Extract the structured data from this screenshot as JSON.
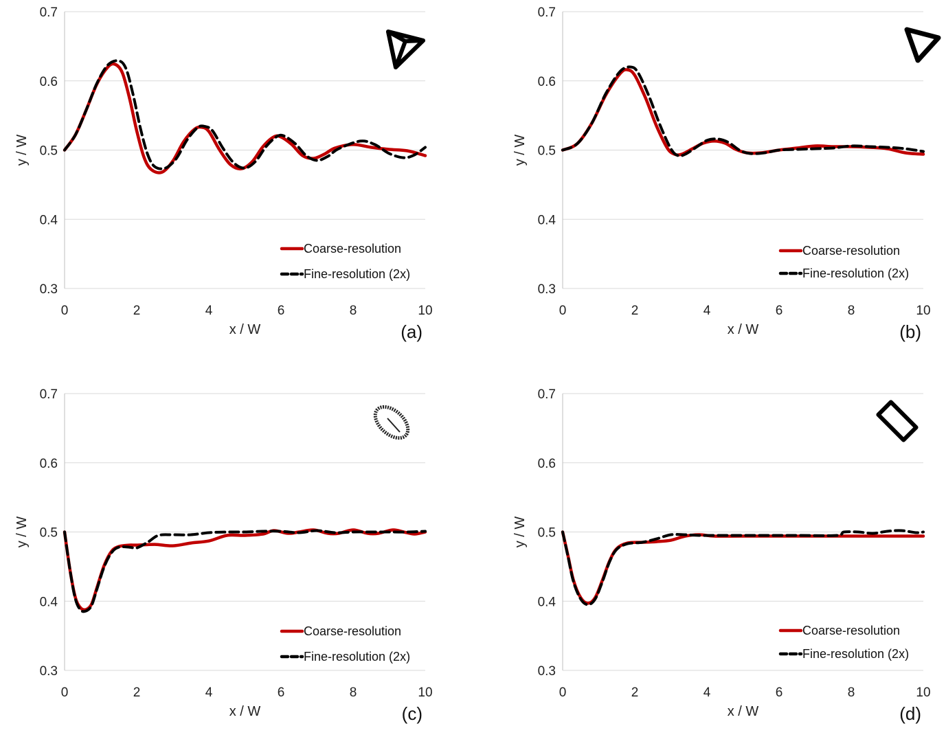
{
  "chart_data": [
    {
      "type": "line",
      "panel_label": "(a)",
      "xlabel": "x / W",
      "ylabel": "y / W",
      "xlim": [
        0,
        10
      ],
      "ylim": [
        0.3,
        0.7
      ],
      "xticks": [
        "0",
        "2",
        "4",
        "6",
        "8",
        "10"
      ],
      "yticks": [
        "0.3",
        "0.4",
        "0.5",
        "0.6",
        "0.7"
      ],
      "shape_icon": "arrowhead-triangle-icon",
      "series": [
        {
          "name": "Coarse-resolution",
          "color": "#c00000",
          "style": "solid",
          "x": [
            0,
            0.3,
            0.6,
            0.9,
            1.2,
            1.4,
            1.6,
            1.8,
            2.0,
            2.2,
            2.4,
            2.7,
            3.0,
            3.3,
            3.6,
            3.8,
            4.0,
            4.3,
            4.6,
            4.9,
            5.2,
            5.5,
            5.8,
            6.0,
            6.3,
            6.6,
            6.9,
            7.2,
            7.5,
            8.0,
            8.5,
            9.0,
            9.5,
            10.0
          ],
          "y": [
            0.5,
            0.522,
            0.558,
            0.596,
            0.62,
            0.624,
            0.612,
            0.575,
            0.528,
            0.49,
            0.472,
            0.468,
            0.484,
            0.512,
            0.53,
            0.533,
            0.527,
            0.5,
            0.479,
            0.473,
            0.483,
            0.505,
            0.519,
            0.519,
            0.508,
            0.492,
            0.488,
            0.494,
            0.503,
            0.508,
            0.504,
            0.501,
            0.499,
            0.492
          ]
        },
        {
          "name": "Fine-resolution (2x)",
          "color": "#000000",
          "style": "dashed",
          "x": [
            0,
            0.3,
            0.6,
            0.9,
            1.2,
            1.5,
            1.7,
            1.9,
            2.1,
            2.3,
            2.5,
            2.8,
            3.1,
            3.4,
            3.7,
            3.9,
            4.1,
            4.4,
            4.7,
            5.0,
            5.3,
            5.6,
            5.9,
            6.1,
            6.4,
            6.7,
            7.0,
            7.3,
            7.6,
            8.2,
            8.6,
            9.0,
            9.4,
            9.7,
            10.0
          ],
          "y": [
            0.5,
            0.522,
            0.558,
            0.597,
            0.623,
            0.629,
            0.618,
            0.58,
            0.532,
            0.494,
            0.476,
            0.474,
            0.488,
            0.515,
            0.533,
            0.534,
            0.528,
            0.502,
            0.481,
            0.474,
            0.484,
            0.506,
            0.52,
            0.52,
            0.509,
            0.492,
            0.485,
            0.491,
            0.502,
            0.513,
            0.508,
            0.495,
            0.489,
            0.493,
            0.504
          ]
        }
      ]
    },
    {
      "type": "line",
      "panel_label": "(b)",
      "xlabel": "x / W",
      "ylabel": "y / W",
      "xlim": [
        0,
        10
      ],
      "ylim": [
        0.3,
        0.7
      ],
      "xticks": [
        "0",
        "2",
        "4",
        "6",
        "8",
        "10"
      ],
      "yticks": [
        "0.3",
        "0.4",
        "0.5",
        "0.6",
        "0.7"
      ],
      "shape_icon": "triangle-icon",
      "series": [
        {
          "name": "Coarse-resolution",
          "color": "#c00000",
          "style": "solid",
          "x": [
            0,
            0.4,
            0.8,
            1.2,
            1.6,
            1.8,
            2.0,
            2.3,
            2.6,
            2.9,
            3.1,
            3.3,
            3.6,
            3.9,
            4.2,
            4.5,
            4.8,
            5.1,
            5.5,
            6.0,
            6.5,
            7.0,
            7.5,
            8.0,
            8.5,
            9.0,
            9.5,
            10.0
          ],
          "y": [
            0.5,
            0.509,
            0.538,
            0.58,
            0.611,
            0.616,
            0.608,
            0.575,
            0.535,
            0.503,
            0.494,
            0.494,
            0.502,
            0.51,
            0.513,
            0.51,
            0.501,
            0.496,
            0.496,
            0.5,
            0.503,
            0.506,
            0.505,
            0.505,
            0.504,
            0.502,
            0.496,
            0.494
          ]
        },
        {
          "name": "Fine-resolution (2x)",
          "color": "#000000",
          "style": "dashed",
          "x": [
            0,
            0.4,
            0.8,
            1.2,
            1.6,
            1.9,
            2.1,
            2.4,
            2.7,
            3.0,
            3.2,
            3.4,
            3.7,
            4.0,
            4.3,
            4.6,
            4.9,
            5.2,
            5.6,
            6.0,
            6.5,
            7.0,
            7.5,
            8.0,
            8.5,
            9.0,
            9.5,
            10.0
          ],
          "y": [
            0.5,
            0.509,
            0.538,
            0.582,
            0.614,
            0.62,
            0.611,
            0.577,
            0.536,
            0.502,
            0.492,
            0.494,
            0.504,
            0.514,
            0.516,
            0.511,
            0.5,
            0.495,
            0.496,
            0.5,
            0.501,
            0.502,
            0.503,
            0.506,
            0.505,
            0.504,
            0.502,
            0.498
          ]
        }
      ]
    },
    {
      "type": "line",
      "panel_label": "(c)",
      "xlabel": "x / W",
      "ylabel": "y / W",
      "xlim": [
        0,
        10
      ],
      "ylim": [
        0.3,
        0.7
      ],
      "xticks": [
        "0",
        "2",
        "4",
        "6",
        "8",
        "10"
      ],
      "yticks": [
        "0.3",
        "0.4",
        "0.5",
        "0.6",
        "0.7"
      ],
      "shape_icon": "ellipse-icon",
      "series": [
        {
          "name": "Coarse-resolution",
          "color": "#c00000",
          "style": "solid",
          "x": [
            0,
            0.15,
            0.3,
            0.45,
            0.6,
            0.75,
            0.9,
            1.1,
            1.3,
            1.5,
            1.8,
            2.0,
            2.5,
            3.0,
            3.5,
            4.0,
            4.5,
            5.0,
            5.5,
            5.8,
            6.2,
            6.5,
            6.9,
            7.3,
            7.6,
            8.0,
            8.4,
            8.7,
            9.1,
            9.4,
            9.7,
            10.0
          ],
          "y": [
            0.5,
            0.445,
            0.405,
            0.39,
            0.388,
            0.396,
            0.42,
            0.452,
            0.472,
            0.479,
            0.481,
            0.481,
            0.482,
            0.48,
            0.484,
            0.487,
            0.495,
            0.495,
            0.497,
            0.502,
            0.498,
            0.5,
            0.503,
            0.498,
            0.498,
            0.503,
            0.498,
            0.498,
            0.503,
            0.5,
            0.497,
            0.5
          ]
        },
        {
          "name": "Fine-resolution (2x)",
          "color": "#000000",
          "style": "dashed",
          "x": [
            0,
            0.15,
            0.3,
            0.45,
            0.6,
            0.75,
            0.9,
            1.1,
            1.3,
            1.5,
            1.8,
            2.0,
            2.3,
            2.6,
            3.0,
            3.5,
            4.0,
            4.5,
            5.0,
            5.5,
            6.0,
            6.5,
            7.0,
            7.5,
            8.0,
            8.5,
            9.0,
            9.5,
            10.0
          ],
          "y": [
            0.5,
            0.445,
            0.403,
            0.387,
            0.386,
            0.394,
            0.418,
            0.45,
            0.47,
            0.478,
            0.478,
            0.477,
            0.485,
            0.495,
            0.496,
            0.496,
            0.499,
            0.5,
            0.5,
            0.501,
            0.501,
            0.499,
            0.502,
            0.499,
            0.5,
            0.5,
            0.5,
            0.5,
            0.501
          ]
        }
      ]
    },
    {
      "type": "line",
      "panel_label": "(d)",
      "xlabel": "x / W",
      "ylabel": "y / W",
      "xlim": [
        0,
        10
      ],
      "ylim": [
        0.3,
        0.7
      ],
      "xticks": [
        "0",
        "2",
        "4",
        "6",
        "8",
        "10"
      ],
      "yticks": [
        "0.3",
        "0.4",
        "0.5",
        "0.6",
        "0.7"
      ],
      "shape_icon": "rectangle-icon",
      "series": [
        {
          "name": "Coarse-resolution",
          "color": "#c00000",
          "style": "solid",
          "x": [
            0,
            0.15,
            0.3,
            0.5,
            0.7,
            0.9,
            1.1,
            1.3,
            1.5,
            1.8,
            2.2,
            2.6,
            3.0,
            3.4,
            3.8,
            4.2,
            5.0,
            6.0,
            7.0,
            8.0,
            9.0,
            10.0
          ],
          "y": [
            0.5,
            0.465,
            0.43,
            0.405,
            0.397,
            0.405,
            0.43,
            0.458,
            0.476,
            0.484,
            0.485,
            0.486,
            0.488,
            0.494,
            0.496,
            0.494,
            0.494,
            0.494,
            0.494,
            0.494,
            0.494,
            0.494
          ]
        },
        {
          "name": "Fine-resolution (2x)",
          "color": "#000000",
          "style": "dashed",
          "x": [
            0,
            0.15,
            0.3,
            0.5,
            0.7,
            0.9,
            1.1,
            1.3,
            1.5,
            1.8,
            2.2,
            2.6,
            3.0,
            3.4,
            3.8,
            4.5,
            5.5,
            6.5,
            7.6,
            7.8,
            8.2,
            8.6,
            9.0,
            9.4,
            9.8,
            10.0
          ],
          "y": [
            0.5,
            0.464,
            0.428,
            0.403,
            0.395,
            0.403,
            0.428,
            0.457,
            0.475,
            0.483,
            0.485,
            0.49,
            0.496,
            0.496,
            0.495,
            0.495,
            0.495,
            0.495,
            0.495,
            0.5,
            0.5,
            0.498,
            0.501,
            0.502,
            0.499,
            0.5
          ]
        }
      ]
    }
  ]
}
